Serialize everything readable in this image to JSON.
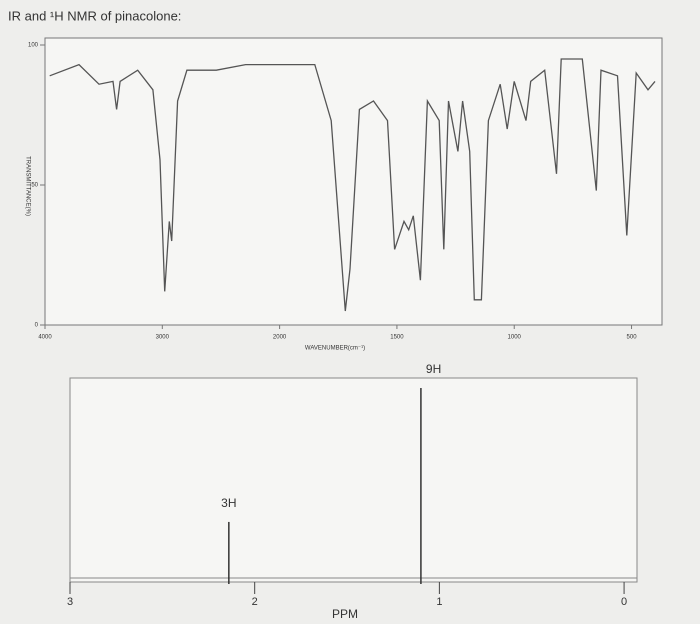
{
  "title": "IR and ¹H NMR of pinacolone:",
  "chart_data": [
    {
      "type": "line",
      "y_label": "TRANSMITTANCE(%)",
      "x_label": "WAVENUMBER(cm⁻¹)",
      "x": [
        3960,
        3710,
        3540,
        3420,
        3390,
        3360,
        3210,
        3080,
        3020,
        2980,
        2940,
        2920,
        2870,
        2790,
        2540,
        2290,
        2000,
        1850,
        1780,
        1720,
        1700,
        1660,
        1600,
        1540,
        1510,
        1470,
        1450,
        1430,
        1400,
        1370,
        1320,
        1300,
        1280,
        1240,
        1220,
        1190,
        1170,
        1140,
        1110,
        1060,
        1030,
        1000,
        950,
        930,
        870,
        820,
        800,
        710,
        650,
        630,
        560,
        520,
        480,
        430,
        400
      ],
      "values": [
        89,
        93,
        86,
        87,
        77,
        87,
        91,
        84,
        59,
        12,
        37,
        30,
        80,
        91,
        91,
        93,
        93,
        93,
        73,
        5,
        20,
        77,
        80,
        73,
        27,
        37,
        34,
        39,
        16,
        80,
        73,
        27,
        80,
        62,
        80,
        62,
        9,
        9,
        73,
        86,
        70,
        87,
        73,
        87,
        91,
        54,
        95,
        95,
        48,
        91,
        89,
        32,
        90,
        84,
        87
      ],
      "color": "#555555",
      "xlim": [
        4000,
        400
      ],
      "xticks": [
        4000,
        3000,
        2000,
        1500,
        1000,
        500
      ],
      "ylim": [
        0,
        100
      ],
      "yticks": [
        0,
        50,
        100
      ]
    },
    {
      "type": "nmr",
      "x_label": "PPM",
      "x": [
        2.14,
        1.1
      ],
      "values": [
        3,
        9
      ],
      "value_labels": [
        "3H",
        "9H"
      ],
      "color": "#333333",
      "xlim": [
        3,
        -0.07
      ],
      "xticks": [
        3,
        2,
        1,
        0
      ]
    }
  ]
}
